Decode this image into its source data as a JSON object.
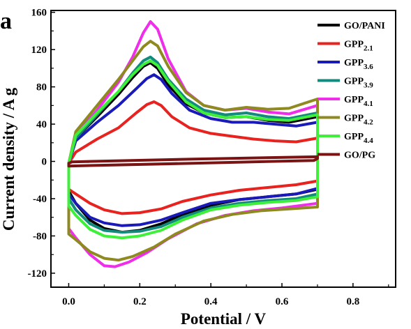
{
  "chart_data": {
    "type": "line",
    "panel_label": "a",
    "xlabel": "Potential / V",
    "ylabel": "Current density / A g",
    "xlim": [
      -0.05,
      0.92
    ],
    "ylim": [
      -135,
      162
    ],
    "xticks": [
      "0.0",
      "0.2",
      "0.4",
      "0.6",
      "0.8"
    ],
    "xtick_values": [
      0,
      0.2,
      0.4,
      0.6,
      0.8
    ],
    "yticks": [
      "160",
      "120",
      "80",
      "40",
      "0",
      "-40",
      "-80",
      "-120"
    ],
    "ytick_values": [
      160,
      120,
      80,
      40,
      0,
      -40,
      -80,
      -120
    ],
    "grid": false,
    "legend_position": "top-right",
    "series": [
      {
        "name": "GO/PANI",
        "sub": "",
        "color": "#000000",
        "upper": [
          [
            0,
            -2
          ],
          [
            0.02,
            25
          ],
          [
            0.08,
            48
          ],
          [
            0.14,
            72
          ],
          [
            0.18,
            90
          ],
          [
            0.21,
            102
          ],
          [
            0.23,
            106
          ],
          [
            0.25,
            100
          ],
          [
            0.28,
            82
          ],
          [
            0.33,
            62
          ],
          [
            0.38,
            52
          ],
          [
            0.44,
            47
          ],
          [
            0.5,
            48
          ],
          [
            0.56,
            44
          ],
          [
            0.62,
            42
          ],
          [
            0.7,
            48
          ]
        ],
        "lower": [
          [
            0,
            -32
          ],
          [
            0.02,
            -45
          ],
          [
            0.06,
            -63
          ],
          [
            0.1,
            -72
          ],
          [
            0.15,
            -76
          ],
          [
            0.2,
            -74
          ],
          [
            0.26,
            -67
          ],
          [
            0.32,
            -57
          ],
          [
            0.4,
            -47
          ],
          [
            0.48,
            -41
          ],
          [
            0.56,
            -38
          ],
          [
            0.64,
            -35
          ],
          [
            0.7,
            -30
          ]
        ]
      },
      {
        "name": "GPP",
        "sub": "2.1",
        "color": "#e8231f",
        "upper": [
          [
            0,
            -2
          ],
          [
            0.02,
            10
          ],
          [
            0.08,
            24
          ],
          [
            0.14,
            36
          ],
          [
            0.19,
            52
          ],
          [
            0.22,
            61
          ],
          [
            0.24,
            64
          ],
          [
            0.26,
            60
          ],
          [
            0.29,
            48
          ],
          [
            0.34,
            36
          ],
          [
            0.4,
            30
          ],
          [
            0.46,
            27
          ],
          [
            0.52,
            24
          ],
          [
            0.58,
            22
          ],
          [
            0.64,
            21
          ],
          [
            0.7,
            25
          ]
        ],
        "lower": [
          [
            0,
            -30
          ],
          [
            0.02,
            -35
          ],
          [
            0.06,
            -45
          ],
          [
            0.1,
            -52
          ],
          [
            0.15,
            -56
          ],
          [
            0.2,
            -55
          ],
          [
            0.26,
            -51
          ],
          [
            0.32,
            -43
          ],
          [
            0.4,
            -36
          ],
          [
            0.48,
            -31
          ],
          [
            0.56,
            -28
          ],
          [
            0.64,
            -25
          ],
          [
            0.7,
            -21
          ]
        ]
      },
      {
        "name": "GPP",
        "sub": "3.6",
        "color": "#1a1ab8",
        "upper": [
          [
            0,
            -2
          ],
          [
            0.02,
            22
          ],
          [
            0.08,
            42
          ],
          [
            0.14,
            60
          ],
          [
            0.19,
            78
          ],
          [
            0.22,
            89
          ],
          [
            0.24,
            93
          ],
          [
            0.26,
            88
          ],
          [
            0.29,
            73
          ],
          [
            0.34,
            55
          ],
          [
            0.4,
            46
          ],
          [
            0.46,
            42
          ],
          [
            0.52,
            42
          ],
          [
            0.58,
            40
          ],
          [
            0.64,
            38
          ],
          [
            0.7,
            42
          ]
        ],
        "lower": [
          [
            0,
            -35
          ],
          [
            0.02,
            -45
          ],
          [
            0.06,
            -60
          ],
          [
            0.1,
            -66
          ],
          [
            0.15,
            -69
          ],
          [
            0.2,
            -68
          ],
          [
            0.26,
            -63
          ],
          [
            0.32,
            -55
          ],
          [
            0.4,
            -45
          ],
          [
            0.48,
            -41
          ],
          [
            0.56,
            -38
          ],
          [
            0.64,
            -35
          ],
          [
            0.7,
            -29
          ]
        ]
      },
      {
        "name": "GPP",
        "sub": "3.9",
        "color": "#128a7c",
        "upper": [
          [
            0,
            -2
          ],
          [
            0.02,
            25
          ],
          [
            0.08,
            50
          ],
          [
            0.14,
            75
          ],
          [
            0.18,
            95
          ],
          [
            0.21,
            108
          ],
          [
            0.23,
            112
          ],
          [
            0.25,
            106
          ],
          [
            0.28,
            88
          ],
          [
            0.33,
            67
          ],
          [
            0.38,
            55
          ],
          [
            0.44,
            50
          ],
          [
            0.5,
            52
          ],
          [
            0.56,
            48
          ],
          [
            0.62,
            46
          ],
          [
            0.7,
            52
          ]
        ],
        "lower": [
          [
            0,
            -40
          ],
          [
            0.02,
            -52
          ],
          [
            0.06,
            -67
          ],
          [
            0.1,
            -74
          ],
          [
            0.15,
            -76
          ],
          [
            0.2,
            -75
          ],
          [
            0.26,
            -70
          ],
          [
            0.32,
            -60
          ],
          [
            0.4,
            -50
          ],
          [
            0.48,
            -45
          ],
          [
            0.56,
            -42
          ],
          [
            0.64,
            -40
          ],
          [
            0.7,
            -35
          ]
        ]
      },
      {
        "name": "GPP",
        "sub": "4.1",
        "color": "#ee2ee8",
        "upper": [
          [
            0,
            -2
          ],
          [
            0.02,
            28
          ],
          [
            0.08,
            55
          ],
          [
            0.14,
            85
          ],
          [
            0.18,
            112
          ],
          [
            0.21,
            138
          ],
          [
            0.23,
            150
          ],
          [
            0.25,
            142
          ],
          [
            0.28,
            110
          ],
          [
            0.33,
            75
          ],
          [
            0.38,
            60
          ],
          [
            0.44,
            55
          ],
          [
            0.5,
            57
          ],
          [
            0.56,
            53
          ],
          [
            0.62,
            51
          ],
          [
            0.7,
            60
          ]
        ],
        "lower": [
          [
            0,
            -72
          ],
          [
            0.02,
            -82
          ],
          [
            0.06,
            -100
          ],
          [
            0.1,
            -112
          ],
          [
            0.13,
            -113
          ],
          [
            0.17,
            -108
          ],
          [
            0.22,
            -98
          ],
          [
            0.28,
            -83
          ],
          [
            0.36,
            -67
          ],
          [
            0.44,
            -58
          ],
          [
            0.52,
            -53
          ],
          [
            0.6,
            -50
          ],
          [
            0.7,
            -45
          ]
        ]
      },
      {
        "name": "GPP",
        "sub": "4.2",
        "color": "#8e8a20",
        "upper": [
          [
            0,
            -2
          ],
          [
            0.02,
            32
          ],
          [
            0.08,
            60
          ],
          [
            0.14,
            88
          ],
          [
            0.18,
            108
          ],
          [
            0.21,
            123
          ],
          [
            0.23,
            129
          ],
          [
            0.25,
            124
          ],
          [
            0.28,
            102
          ],
          [
            0.33,
            74
          ],
          [
            0.38,
            60
          ],
          [
            0.44,
            55
          ],
          [
            0.5,
            58
          ],
          [
            0.56,
            56
          ],
          [
            0.62,
            57
          ],
          [
            0.7,
            67
          ]
        ],
        "lower": [
          [
            0,
            -78
          ],
          [
            0.02,
            -84
          ],
          [
            0.06,
            -97
          ],
          [
            0.1,
            -104
          ],
          [
            0.14,
            -106
          ],
          [
            0.18,
            -102
          ],
          [
            0.24,
            -92
          ],
          [
            0.3,
            -78
          ],
          [
            0.38,
            -64
          ],
          [
            0.46,
            -57
          ],
          [
            0.54,
            -53
          ],
          [
            0.62,
            -51
          ],
          [
            0.7,
            -49
          ]
        ]
      },
      {
        "name": "GPP",
        "sub": "4.4",
        "color": "#3ef03a",
        "upper": [
          [
            0,
            -2
          ],
          [
            0.02,
            28
          ],
          [
            0.08,
            52
          ],
          [
            0.14,
            75
          ],
          [
            0.18,
            93
          ],
          [
            0.21,
            104
          ],
          [
            0.23,
            108
          ],
          [
            0.25,
            103
          ],
          [
            0.28,
            86
          ],
          [
            0.33,
            64
          ],
          [
            0.38,
            52
          ],
          [
            0.44,
            47
          ],
          [
            0.5,
            48
          ],
          [
            0.56,
            45
          ],
          [
            0.62,
            44
          ],
          [
            0.7,
            50
          ]
        ],
        "lower": [
          [
            0,
            -48
          ],
          [
            0.02,
            -58
          ],
          [
            0.06,
            -73
          ],
          [
            0.1,
            -80
          ],
          [
            0.15,
            -82
          ],
          [
            0.2,
            -80
          ],
          [
            0.26,
            -74
          ],
          [
            0.32,
            -63
          ],
          [
            0.4,
            -52
          ],
          [
            0.48,
            -47
          ],
          [
            0.56,
            -44
          ],
          [
            0.64,
            -42
          ],
          [
            0.7,
            -38
          ]
        ]
      },
      {
        "name": "GO/PG",
        "sub": "",
        "color": "#7a1414",
        "upper": [
          [
            0,
            -2
          ],
          [
            0.01,
            -0.5
          ],
          [
            0.35,
            2.5
          ],
          [
            0.7,
            5
          ]
        ],
        "lower": [
          [
            0,
            -5
          ],
          [
            0.35,
            -2
          ],
          [
            0.69,
            1
          ],
          [
            0.7,
            3
          ]
        ]
      }
    ]
  }
}
